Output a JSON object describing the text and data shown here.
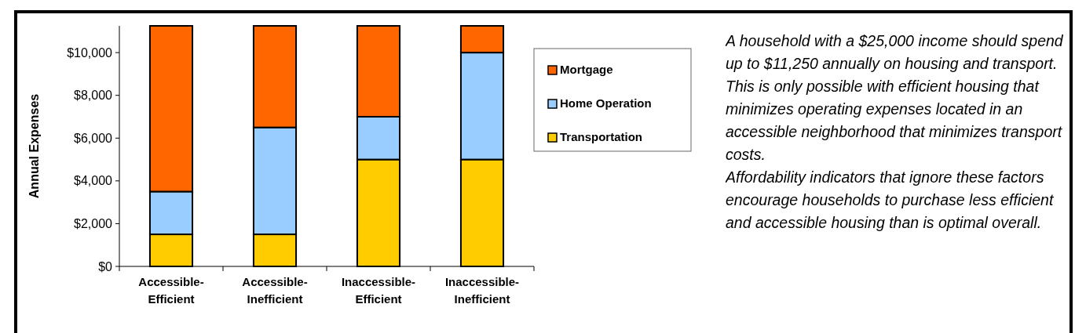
{
  "chart_data": {
    "type": "bar",
    "stacked": true,
    "ylabel": "Annual Expenses",
    "categories": [
      "Accessible-Efficient",
      "Accessible-Inefficient",
      "Inaccessible-Efficient",
      "Inaccessible-Inefficient"
    ],
    "series": [
      {
        "name": "Transportation",
        "color": "#ffcc00",
        "values": [
          1500,
          1500,
          5000,
          5000
        ]
      },
      {
        "name": "Home Operation",
        "color": "#99ccff",
        "values": [
          2000,
          5000,
          2000,
          5000
        ]
      },
      {
        "name": "Mortgage",
        "color": "#ff6600",
        "values": [
          7750,
          4750,
          4250,
          1250
        ]
      }
    ],
    "ylim": [
      0,
      11250
    ],
    "yticks": [
      {
        "value": 0,
        "label": "$0"
      },
      {
        "value": 2000,
        "label": "$2,000"
      },
      {
        "value": 4000,
        "label": "$4,000"
      },
      {
        "value": 6000,
        "label": "$6,000"
      },
      {
        "value": 8000,
        "label": "$8,000"
      },
      {
        "value": 10000,
        "label": "$10,000"
      }
    ],
    "grid": false,
    "legend": "right",
    "annotations": [
      "A household with a $25,000 income should spend up to $11,250 annually on housing and transport. This is only possible with efficient housing that minimizes operating expenses located in an accessible neighborhood that minimizes transport costs.",
      "Affordability indicators that ignore these factors encourage households to purchase less efficient and accessible housing than is optimal overall."
    ]
  }
}
